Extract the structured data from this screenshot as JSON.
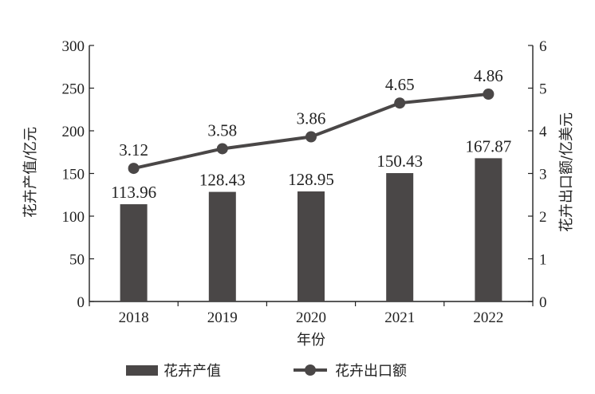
{
  "chart_data": {
    "type": "bar+line",
    "xlabel": "年份",
    "categories": [
      "2018",
      "2019",
      "2020",
      "2021",
      "2022"
    ],
    "y_left": {
      "label": "花卉产值/亿元",
      "range": [
        0,
        300
      ],
      "ticks": [
        "0",
        "50",
        "100",
        "150",
        "200",
        "250",
        "300"
      ]
    },
    "y_right": {
      "label": "花卉出口额/亿美元",
      "range": [
        0,
        6
      ],
      "ticks": [
        "0",
        "1",
        "2",
        "3",
        "4",
        "5",
        "6"
      ]
    },
    "series": [
      {
        "name": "花卉产值",
        "kind": "bar",
        "axis": "left",
        "color": "#4a4747",
        "values": [
          113.96,
          128.43,
          128.95,
          150.43,
          167.87
        ],
        "labels": [
          "113.96",
          "128.43",
          "128.95",
          "150.43",
          "167.87"
        ]
      },
      {
        "name": "花卉出口额",
        "kind": "line",
        "axis": "right",
        "color": "#4a4747",
        "values": [
          3.12,
          3.58,
          3.86,
          4.65,
          4.86
        ],
        "labels": [
          "3.12",
          "3.58",
          "3.86",
          "4.65",
          "4.86"
        ]
      }
    ],
    "grid": false,
    "legend_position": "bottom"
  }
}
